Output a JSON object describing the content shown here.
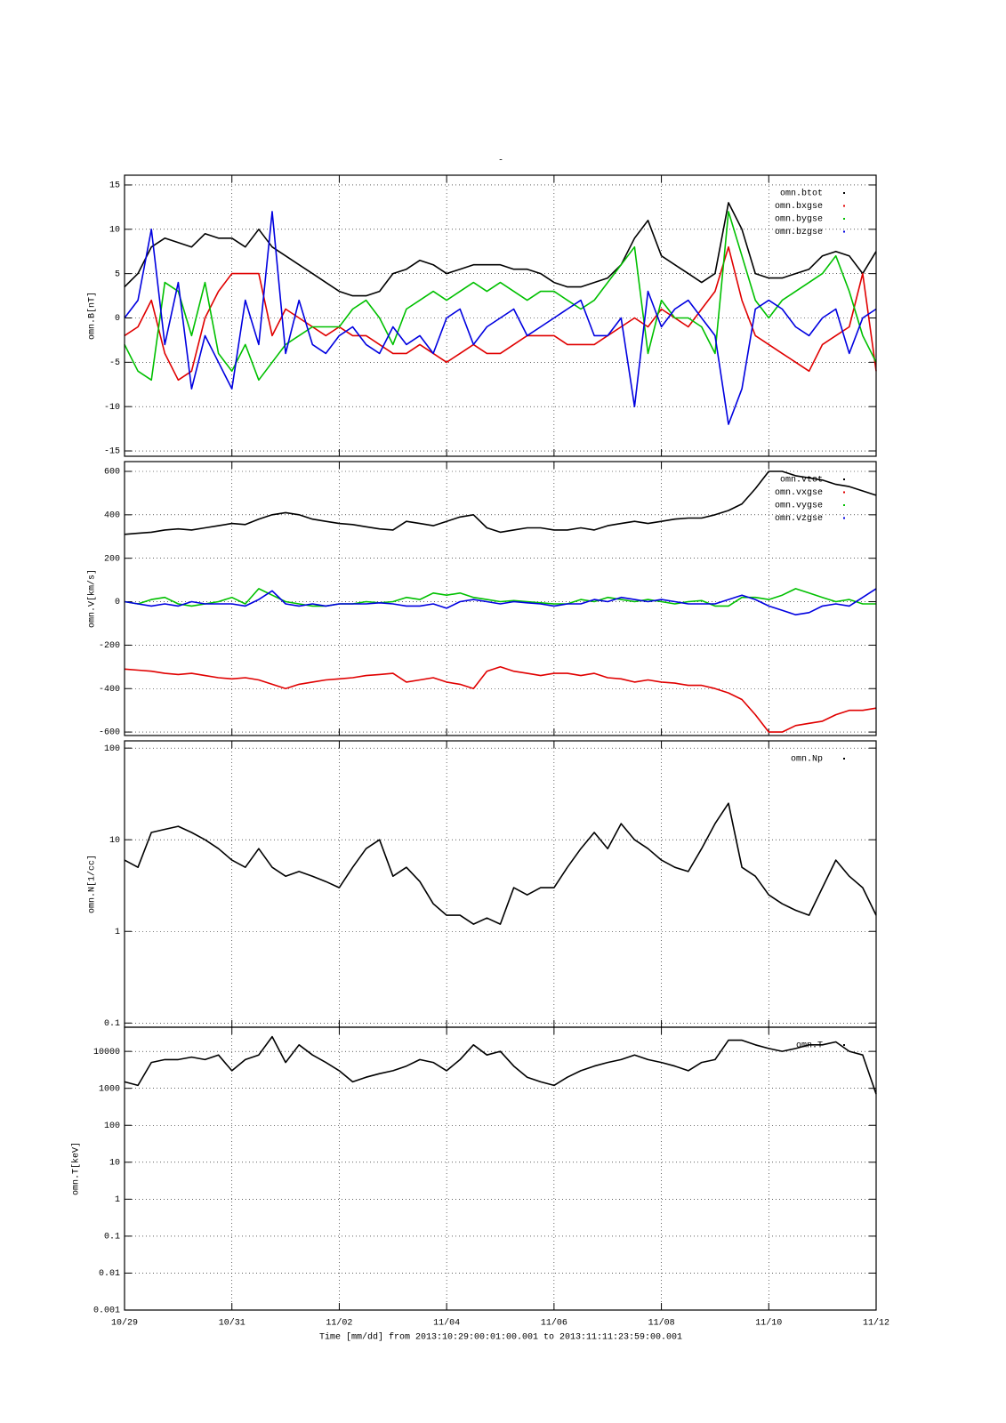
{
  "chart_data": [
    {
      "type": "line",
      "title": "-",
      "ylabel": "omn.B[nT]",
      "grid": true,
      "legend": "upper right",
      "x": [
        0,
        6,
        12,
        18,
        24,
        30,
        36,
        42,
        48,
        54,
        60,
        66,
        72,
        78,
        84,
        90,
        96,
        102,
        108,
        114,
        120,
        126,
        132,
        138,
        144,
        150,
        156,
        162,
        168,
        174,
        180,
        186,
        192,
        198,
        204,
        210,
        216,
        222,
        228,
        234,
        240,
        246,
        252,
        258,
        264,
        270,
        276,
        282,
        288,
        294,
        300,
        306,
        312,
        318,
        324,
        330,
        336
      ],
      "xlim": [
        0,
        336
      ],
      "xticks": [
        0,
        48,
        96,
        144,
        192,
        240,
        288,
        336
      ],
      "ylim": [
        -15.6,
        16.1
      ],
      "yticks": [
        -15,
        -10,
        -5,
        0,
        5,
        10,
        15
      ],
      "series": [
        {
          "name": "omn.btot",
          "color": "#000000",
          "values": [
            3.5,
            5,
            8,
            9,
            8.5,
            8,
            9.5,
            9,
            9,
            8,
            10,
            8,
            7,
            6,
            5,
            4,
            3,
            2.5,
            2.5,
            3,
            5,
            5.5,
            6.5,
            6,
            5,
            5.5,
            6,
            6,
            6,
            5.5,
            5.5,
            5,
            4,
            3.5,
            3.5,
            4,
            4.5,
            6,
            9,
            11,
            7,
            6,
            5,
            4,
            5,
            13,
            10,
            5,
            4.5,
            4.5,
            5,
            5.5,
            7,
            7.5,
            7,
            5,
            7.5
          ]
        },
        {
          "name": "omn.bxgse",
          "color": "#e00000",
          "values": [
            -2,
            -1,
            2,
            -4,
            -7,
            -6,
            0,
            3,
            5,
            5,
            5,
            -2,
            1,
            0,
            -1,
            -2,
            -1,
            -2,
            -2,
            -3,
            -4,
            -4,
            -3,
            -4,
            -5,
            -4,
            -3,
            -4,
            -4,
            -3,
            -2,
            -2,
            -2,
            -3,
            -3,
            -3,
            -2,
            -1,
            0,
            -1,
            1,
            0,
            -1,
            1,
            3,
            8,
            2,
            -2,
            -3,
            -4,
            -5,
            -6,
            -3,
            -2,
            -1,
            5,
            -6
          ]
        },
        {
          "name": "omn.bygse",
          "color": "#00c000",
          "values": [
            -3,
            -6,
            -7,
            4,
            3,
            -2,
            4,
            -4,
            -6,
            -3,
            -7,
            -5,
            -3,
            -2,
            -1,
            -1,
            -1,
            1,
            2,
            0,
            -3,
            1,
            2,
            3,
            2,
            3,
            4,
            3,
            4,
            3,
            2,
            3,
            3,
            2,
            1,
            2,
            4,
            6,
            8,
            -4,
            2,
            0,
            0,
            -1,
            -4,
            12,
            7,
            2,
            0,
            2,
            3,
            4,
            5,
            7,
            3,
            -2,
            -5
          ]
        },
        {
          "name": "omn.bzgse",
          "color": "#0000e0",
          "values": [
            0,
            2,
            10,
            -3,
            4,
            -8,
            -2,
            -5,
            -8,
            2,
            -3,
            12,
            -4,
            2,
            -3,
            -4,
            -2,
            -1,
            -3,
            -4,
            -1,
            -3,
            -2,
            -4,
            0,
            1,
            -3,
            -1,
            0,
            1,
            -2,
            -1,
            0,
            1,
            2,
            -2,
            -2,
            0,
            -10,
            3,
            -1,
            1,
            2,
            0,
            -2,
            -12,
            -8,
            1,
            2,
            1,
            -1,
            -2,
            0,
            1,
            -4,
            0,
            1
          ]
        }
      ]
    },
    {
      "type": "line",
      "ylabel": "omn.V[km/s]",
      "grid": true,
      "legend": "upper right",
      "x": [
        0,
        6,
        12,
        18,
        24,
        30,
        36,
        42,
        48,
        54,
        60,
        66,
        72,
        78,
        84,
        90,
        96,
        102,
        108,
        114,
        120,
        126,
        132,
        138,
        144,
        150,
        156,
        162,
        168,
        174,
        180,
        186,
        192,
        198,
        204,
        210,
        216,
        222,
        228,
        234,
        240,
        246,
        252,
        258,
        264,
        270,
        276,
        282,
        288,
        294,
        300,
        306,
        312,
        318,
        324,
        330,
        336
      ],
      "xlim": [
        0,
        336
      ],
      "xticks": [
        0,
        48,
        96,
        144,
        192,
        240,
        288,
        336
      ],
      "ylim": [
        -616,
        645
      ],
      "yticks": [
        -600,
        -400,
        -200,
        0,
        200,
        400,
        600
      ],
      "series": [
        {
          "name": "omn.vtot",
          "color": "#000000",
          "values": [
            310,
            315,
            320,
            330,
            335,
            330,
            340,
            350,
            360,
            355,
            380,
            400,
            410,
            400,
            380,
            370,
            360,
            355,
            345,
            335,
            330,
            370,
            360,
            350,
            370,
            390,
            400,
            340,
            320,
            330,
            340,
            340,
            330,
            330,
            340,
            330,
            350,
            360,
            370,
            360,
            370,
            380,
            385,
            385,
            400,
            420,
            450,
            520,
            600,
            600,
            580,
            570,
            560,
            540,
            530,
            510,
            490
          ]
        },
        {
          "name": "omn.vxgse",
          "color": "#e00000",
          "values": [
            -310,
            -315,
            -320,
            -330,
            -335,
            -330,
            -340,
            -350,
            -355,
            -350,
            -360,
            -380,
            -400,
            -380,
            -370,
            -360,
            -355,
            -350,
            -340,
            -335,
            -330,
            -370,
            -360,
            -350,
            -370,
            -380,
            -400,
            -320,
            -300,
            -320,
            -330,
            -340,
            -330,
            -330,
            -340,
            -330,
            -350,
            -355,
            -370,
            -360,
            -370,
            -375,
            -385,
            -385,
            -400,
            -420,
            -450,
            -520,
            -600,
            -600,
            -570,
            -560,
            -550,
            -520,
            -500,
            -500,
            -490
          ]
        },
        {
          "name": "omn.vygse",
          "color": "#00c000",
          "values": [
            0,
            -10,
            10,
            20,
            -10,
            -20,
            -10,
            0,
            20,
            -10,
            60,
            30,
            0,
            -10,
            -20,
            -20,
            -10,
            -10,
            0,
            -5,
            0,
            20,
            10,
            40,
            30,
            40,
            20,
            10,
            0,
            5,
            0,
            -5,
            -10,
            -10,
            10,
            0,
            20,
            10,
            0,
            10,
            0,
            -10,
            0,
            5,
            -20,
            -20,
            20,
            20,
            10,
            30,
            60,
            40,
            20,
            0,
            10,
            -10,
            -10
          ]
        },
        {
          "name": "omn.vzgse",
          "color": "#0000e0",
          "values": [
            0,
            -10,
            -20,
            -10,
            -20,
            0,
            -10,
            -10,
            -10,
            -20,
            10,
            50,
            -10,
            -20,
            -10,
            -20,
            -10,
            -10,
            -10,
            -5,
            -10,
            -20,
            -20,
            -10,
            -30,
            0,
            10,
            0,
            -10,
            0,
            -5,
            -10,
            -20,
            -10,
            -10,
            10,
            0,
            20,
            10,
            0,
            10,
            0,
            -10,
            -10,
            -10,
            10,
            30,
            10,
            -20,
            -40,
            -60,
            -50,
            -20,
            -10,
            -20,
            20,
            60
          ]
        }
      ]
    },
    {
      "type": "line",
      "ylabel": "omn.N[1/cc]",
      "grid": true,
      "log": true,
      "legend": "upper right",
      "x": [
        0,
        6,
        12,
        18,
        24,
        30,
        36,
        42,
        48,
        54,
        60,
        66,
        72,
        78,
        84,
        90,
        96,
        102,
        108,
        114,
        120,
        126,
        132,
        138,
        144,
        150,
        156,
        162,
        168,
        174,
        180,
        186,
        192,
        198,
        204,
        210,
        216,
        222,
        228,
        234,
        240,
        246,
        252,
        258,
        264,
        270,
        276,
        282,
        288,
        294,
        300,
        306,
        312,
        318,
        324,
        330,
        336
      ],
      "xlim": [
        0,
        336
      ],
      "xticks": [
        0,
        48,
        96,
        144,
        192,
        240,
        288,
        336
      ],
      "ylim": [
        0.09,
        120
      ],
      "yticks": [
        0.1,
        1,
        10,
        100
      ],
      "series": [
        {
          "name": "omn.Np",
          "color": "#000000",
          "values": [
            6,
            5,
            12,
            13,
            14,
            12,
            10,
            8,
            6,
            5,
            8,
            5,
            4,
            4.5,
            4,
            3.5,
            3,
            5,
            8,
            10,
            4,
            5,
            3.5,
            2,
            1.5,
            1.5,
            1.2,
            1.4,
            1.2,
            3,
            2.5,
            3,
            3,
            5,
            8,
            12,
            8,
            15,
            10,
            8,
            6,
            5,
            4.5,
            8,
            15,
            25,
            5,
            4,
            2.5,
            2,
            1.7,
            1.5,
            3,
            6,
            4,
            3,
            1.5
          ]
        }
      ]
    },
    {
      "type": "line",
      "ylabel": "omn.T[keV]",
      "grid": true,
      "log": true,
      "legend": "upper right",
      "xlabel": "Time [mm/dd]  from 2013:10:29:00:01:00.001  to  2013:11:11:23:59:00.001",
      "x": [
        0,
        6,
        12,
        18,
        24,
        30,
        36,
        42,
        48,
        54,
        60,
        66,
        72,
        78,
        84,
        90,
        96,
        102,
        108,
        114,
        120,
        126,
        132,
        138,
        144,
        150,
        156,
        162,
        168,
        174,
        180,
        186,
        192,
        198,
        204,
        210,
        216,
        222,
        228,
        234,
        240,
        246,
        252,
        258,
        264,
        270,
        276,
        282,
        288,
        294,
        300,
        306,
        312,
        318,
        324,
        330,
        336
      ],
      "xlim": [
        0,
        336
      ],
      "xticks": [
        {
          "value": 0,
          "label": "10/29"
        },
        {
          "value": 48,
          "label": "10/31"
        },
        {
          "value": 96,
          "label": "11/02"
        },
        {
          "value": 144,
          "label": "11/04"
        },
        {
          "value": 192,
          "label": "11/06"
        },
        {
          "value": 240,
          "label": "11/08"
        },
        {
          "value": 288,
          "label": "11/10"
        },
        {
          "value": 336,
          "label": "11/12"
        }
      ],
      "ylim": [
        0.001,
        45000
      ],
      "yticks": [
        0.001,
        0.01,
        0.1,
        1,
        10,
        100,
        1000,
        10000
      ],
      "series": [
        {
          "name": "omn.T",
          "color": "#000000",
          "values": [
            1500,
            1200,
            5000,
            6000,
            6000,
            7000,
            6000,
            8000,
            3000,
            6000,
            8000,
            25000,
            5000,
            15000,
            8000,
            5000,
            3000,
            1500,
            2000,
            2500,
            3000,
            4000,
            6000,
            5000,
            3000,
            6000,
            15000,
            8000,
            10000,
            4000,
            2000,
            1500,
            1200,
            2000,
            3000,
            4000,
            5000,
            6000,
            8000,
            6000,
            5000,
            4000,
            3000,
            5000,
            6000,
            20000,
            20000,
            15000,
            12000,
            10000,
            12000,
            15000,
            15000,
            18000,
            10000,
            8000,
            700
          ]
        }
      ]
    }
  ]
}
